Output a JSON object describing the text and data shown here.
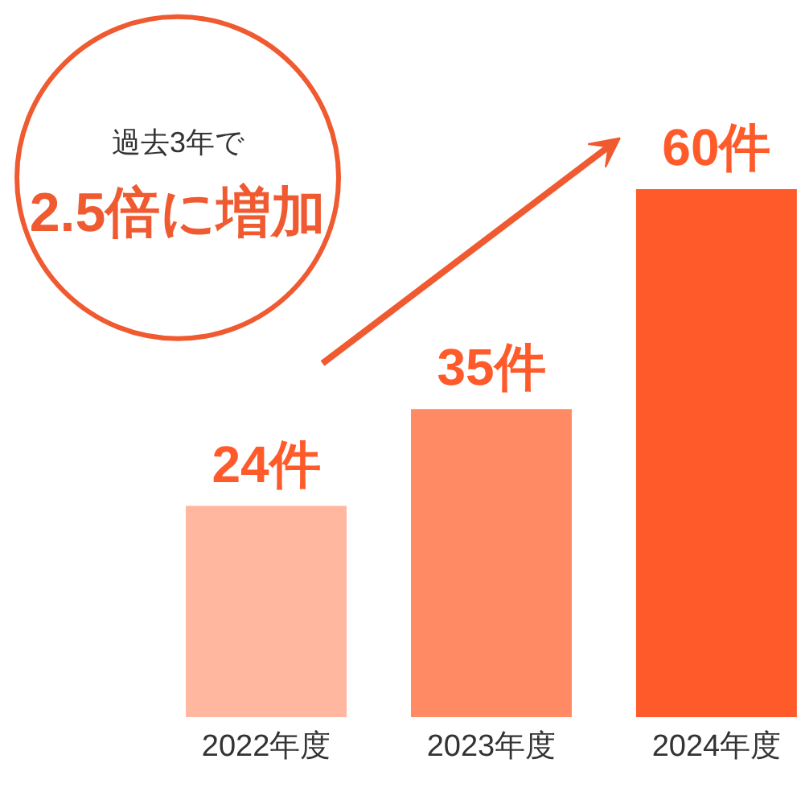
{
  "chart_data": {
    "type": "bar",
    "categories": [
      "2022年度",
      "2023年度",
      "2024年度"
    ],
    "values": [
      24,
      35,
      60
    ],
    "colors": [
      "#ffb79f",
      "#ff8a64",
      "#ff5a2a"
    ],
    "value_labels": [
      "24件",
      "35件",
      "60件"
    ],
    "annotations": [
      "過去3年で",
      "2.5倍に増加"
    ],
    "grid": false
  }
}
